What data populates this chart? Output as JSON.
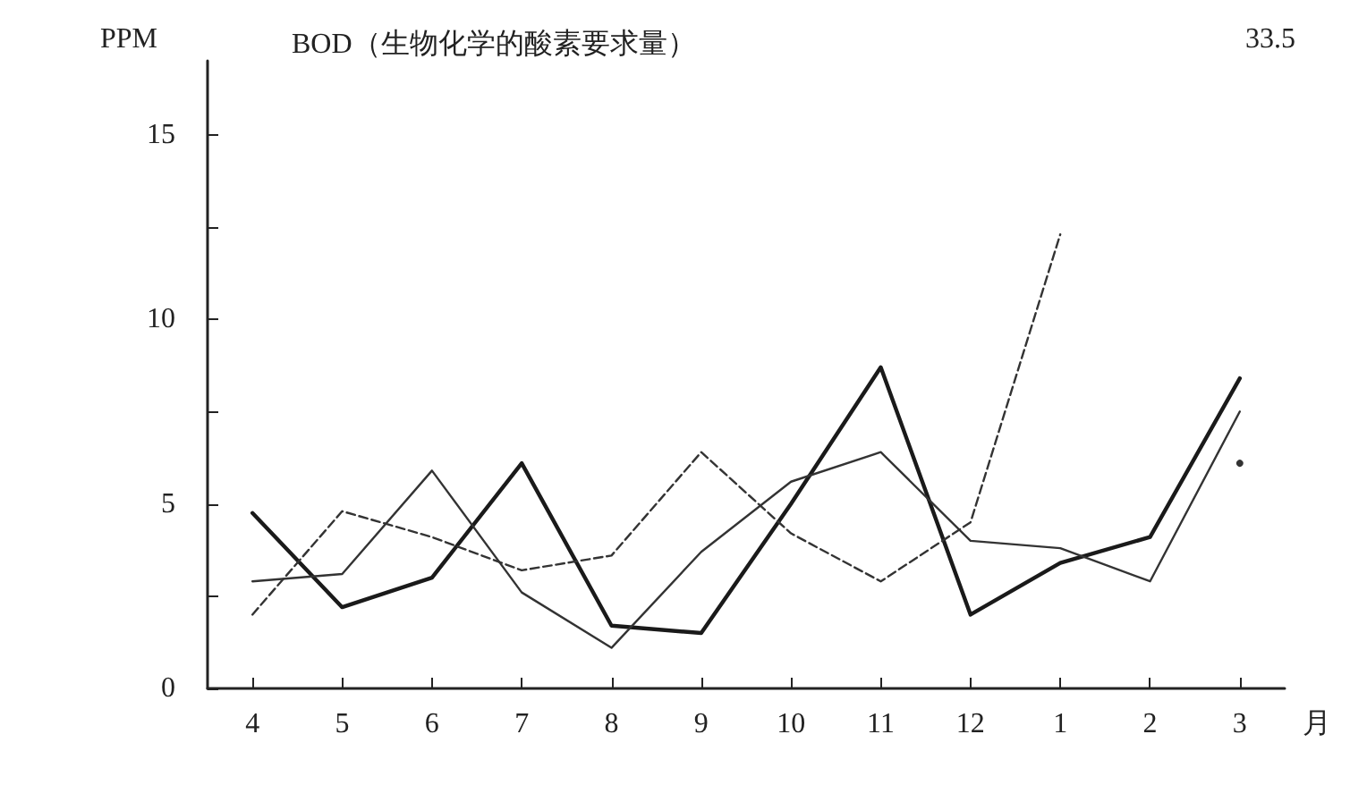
{
  "chart_data": {
    "type": "line",
    "title": "BOD（生物化学的酸素要求量）",
    "ylabel": "PPM",
    "xlabel": "月",
    "categories": [
      "4",
      "5",
      "6",
      "7",
      "8",
      "9",
      "10",
      "11",
      "12",
      "1",
      "2",
      "3"
    ],
    "series": [
      {
        "color": "#1a1a1a",
        "values": [
          4.75,
          2.2,
          3.0,
          6.1,
          1.7,
          1.5,
          5.0,
          8.7,
          2.0,
          3.4,
          4.1,
          8.4
        ]
      },
      {
        "color": "#333333",
        "values": [
          2.9,
          3.1,
          5.9,
          2.6,
          1.1,
          3.7,
          5.6,
          6.4,
          4.0,
          3.8,
          2.9,
          7.5
        ]
      },
      {
        "color": "#333333",
        "line_style": "dashed",
        "values": [
          2.0,
          4.8,
          4.1,
          3.2,
          3.6,
          6.4,
          4.2,
          2.9,
          4.5,
          12.3,
          null,
          6.1
        ]
      }
    ],
    "ylim": [
      0,
      17
    ],
    "yticks": [
      0,
      {
        "value": 2.5,
        "label": null
      },
      5,
      {
        "value": 7.5,
        "label": null
      },
      10,
      {
        "value": 12.5,
        "label": null
      },
      15
    ],
    "annotations": [
      "33.5"
    ],
    "grid": false,
    "marker": "none",
    "line_style": "solid"
  }
}
